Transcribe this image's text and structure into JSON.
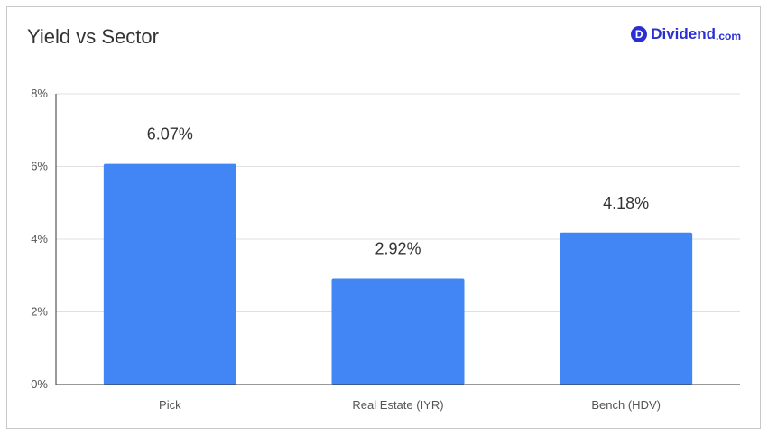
{
  "title": "Yield vs Sector",
  "brand": {
    "name": "Dividend",
    "tld": ".com",
    "icon_letter": "D",
    "color": "#2b2fd1"
  },
  "chart_data": {
    "type": "bar",
    "title": "Yield vs Sector",
    "categories": [
      "Pick",
      "Real Estate (IYR)",
      "Bench (HDV)"
    ],
    "values": [
      6.07,
      2.92,
      4.18
    ],
    "data_labels": [
      "6.07%",
      "2.92%",
      "4.18%"
    ],
    "ylim": [
      0,
      8
    ],
    "yticks": [
      "0%",
      "2%",
      "4%",
      "6%",
      "8%"
    ],
    "xlabel": "",
    "ylabel": "",
    "grid": true,
    "bar_color": "#4285f4"
  }
}
